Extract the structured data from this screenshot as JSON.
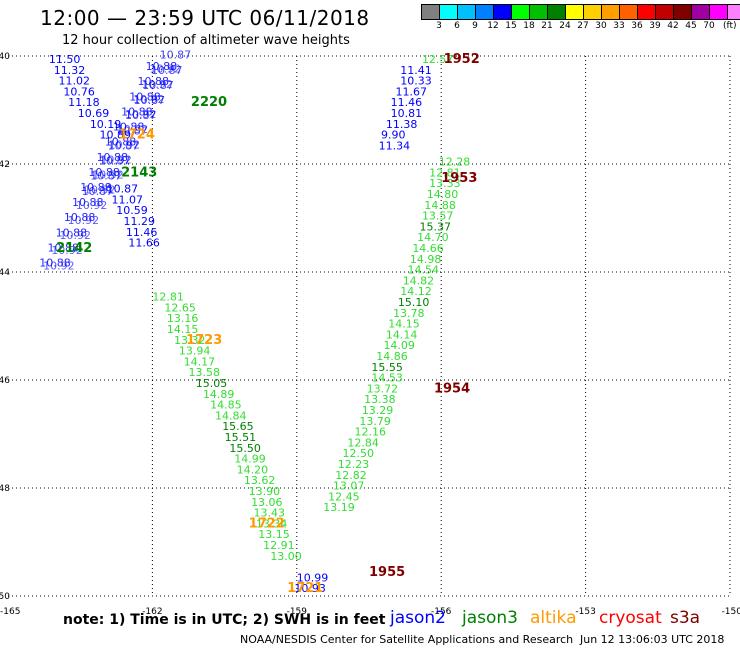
{
  "header": {
    "title": "12:00 — 23:59 UTC 06/11/2018",
    "subtitle": "12 hour collection of altimeter wave heights"
  },
  "colorbar": {
    "colors": [
      "#808080",
      "#00ffff",
      "#00c0ff",
      "#0080ff",
      "#0000ff",
      "#00ff00",
      "#00c000",
      "#008000",
      "#ffff00",
      "#ffd000",
      "#ffa000",
      "#ff6000",
      "#ff0000",
      "#c00000",
      "#800000",
      "#a000a0",
      "#ff00ff",
      "#ff80ff",
      "#000000"
    ],
    "labels": [
      "3",
      "6",
      "9",
      "12",
      "15",
      "18",
      "21",
      "24",
      "27",
      "30",
      "33",
      "36",
      "39",
      "42",
      "45",
      "70"
    ],
    "unit": "(ft)"
  },
  "legend": {
    "jason2": "jason2",
    "jason3": "jason3",
    "altika": "altika",
    "cryosat": "cryosat",
    "s3a": "s3a"
  },
  "footer": {
    "note": "note:  1) Time is in UTC;  2) SWH is in feet",
    "credit": "NOAA/NESDIS Center for Satellite Applications and Research",
    "stamp": "Jun 12 13:06:03 UTC 2018"
  },
  "chart_data": {
    "type": "scatter",
    "xlim": [
      -165,
      -150
    ],
    "ylim": [
      -50,
      -40
    ],
    "x_ticks": [
      "-165",
      "-162",
      "-159",
      "-156",
      "-153",
      "-150"
    ],
    "y_ticks": [
      "-40",
      "-42",
      "-44",
      "-46",
      "-48",
      "-50"
    ],
    "grid": true,
    "series_colors": {
      "jason2": "#0000ff",
      "jason3": "#008000",
      "altika": "#ff9900",
      "s3a": "#800000",
      "light": "#33dd33"
    },
    "tracks": [
      {
        "name": "jason2",
        "color": "jason2",
        "points": [
          [
            -164.15,
            -40.13,
            "11.50"
          ],
          [
            -164.05,
            -40.33,
            "11.32"
          ],
          [
            -163.95,
            -40.53,
            "11.02"
          ],
          [
            -163.85,
            -40.73,
            "10.76"
          ],
          [
            -163.75,
            -40.93,
            "11.18"
          ],
          [
            -163.55,
            -41.13,
            "10.69"
          ],
          [
            -163.3,
            -41.33,
            "10.19"
          ],
          [
            -163.1,
            -41.53,
            "10.89"
          ],
          [
            -162.95,
            -42.53,
            "10.87"
          ],
          [
            -162.85,
            -42.73,
            "11.07"
          ],
          [
            -162.75,
            -42.93,
            "10.59"
          ],
          [
            -162.6,
            -43.13,
            "11.29"
          ],
          [
            -162.55,
            -43.33,
            "11.46"
          ],
          [
            -162.5,
            -43.53,
            "11.66"
          ],
          [
            -159.0,
            -49.73,
            "10.99"
          ],
          [
            -159.05,
            -49.93,
            "10.93"
          ],
          [
            -156.85,
            -40.33,
            "11.41"
          ],
          [
            -156.85,
            -40.53,
            "10.33"
          ],
          [
            -156.95,
            -40.73,
            "11.67"
          ],
          [
            -157.05,
            -40.93,
            "11.46"
          ],
          [
            -157.05,
            -41.13,
            "10.81"
          ],
          [
            -157.15,
            -41.33,
            "11.38"
          ],
          [
            -157.25,
            -41.53,
            "9.90"
          ],
          [
            -157.3,
            -41.73,
            "11.34"
          ]
        ]
      },
      {
        "name": "jason3",
        "color": "jason3",
        "points": [
          [
            -161.2,
            -40.93,
            "2220"
          ],
          [
            -162.65,
            -42.23,
            "2143"
          ],
          [
            -164.0,
            -43.63,
            "2142"
          ],
          [
            -162.0,
            -44.53,
            "12.81"
          ],
          [
            -161.75,
            -44.73,
            "12.65"
          ],
          [
            -161.7,
            -44.93,
            "13.16"
          ],
          [
            -161.7,
            -45.13,
            "14.15"
          ],
          [
            -161.55,
            -45.33,
            "13.32"
          ],
          [
            -161.45,
            -45.53,
            "13.94"
          ],
          [
            -161.35,
            -45.73,
            "14.17"
          ],
          [
            -161.25,
            -45.93,
            "13.58"
          ],
          [
            -161.1,
            -46.13,
            "15.05"
          ],
          [
            -160.95,
            -46.33,
            "14.89"
          ],
          [
            -160.8,
            -46.53,
            "14.85"
          ],
          [
            -160.7,
            -46.73,
            "14.84"
          ],
          [
            -160.55,
            -46.93,
            "15.65"
          ],
          [
            -160.5,
            -47.13,
            "15.51"
          ],
          [
            -160.4,
            -47.33,
            "15.50"
          ],
          [
            -160.3,
            -47.53,
            "14.99"
          ],
          [
            -160.25,
            -47.73,
            "14.20"
          ],
          [
            -160.1,
            -47.93,
            "13.62"
          ],
          [
            -160.0,
            -48.13,
            "13.90"
          ],
          [
            -159.95,
            -48.33,
            "13.06"
          ],
          [
            -159.9,
            -48.53,
            "13.43"
          ],
          [
            -159.85,
            -48.73,
            "13.34"
          ],
          [
            -159.8,
            -48.93,
            "13.15"
          ],
          [
            -159.7,
            -49.13,
            "12.91"
          ],
          [
            -159.55,
            -49.33,
            "13.00"
          ],
          [
            -156.4,
            -40.13,
            "12.57"
          ],
          [
            -156.05,
            -42.03,
            "12.28"
          ],
          [
            -156.25,
            -42.23,
            "12.81"
          ],
          [
            -156.25,
            -42.43,
            "13.33"
          ],
          [
            -156.3,
            -42.63,
            "14.80"
          ],
          [
            -156.35,
            -42.83,
            "14.88"
          ],
          [
            -156.4,
            -43.03,
            "13.57"
          ],
          [
            -156.45,
            -43.23,
            "15.37"
          ],
          [
            -156.5,
            -43.43,
            "14.70"
          ],
          [
            -156.6,
            -43.63,
            "14.66"
          ],
          [
            -156.65,
            -43.83,
            "14.98"
          ],
          [
            -156.7,
            -44.03,
            "14.54"
          ],
          [
            -156.8,
            -44.23,
            "14.82"
          ],
          [
            -156.85,
            -44.43,
            "14.12"
          ],
          [
            -156.9,
            -44.63,
            "15.10"
          ],
          [
            -157.0,
            -44.83,
            "13.78"
          ],
          [
            -157.1,
            -45.03,
            "14.15"
          ],
          [
            -157.15,
            -45.23,
            "14.14"
          ],
          [
            -157.2,
            -45.43,
            "14.09"
          ],
          [
            -157.35,
            -45.63,
            "14.86"
          ],
          [
            -157.45,
            -45.83,
            "15.55"
          ],
          [
            -157.45,
            -46.03,
            "14.53"
          ],
          [
            -157.55,
            -46.23,
            "13.72"
          ],
          [
            -157.6,
            -46.43,
            "13.38"
          ],
          [
            -157.65,
            -46.63,
            "13.29"
          ],
          [
            -157.7,
            -46.83,
            "13.79"
          ],
          [
            -157.8,
            -47.03,
            "12.16"
          ],
          [
            -157.95,
            -47.23,
            "12.84"
          ],
          [
            -158.05,
            -47.43,
            "12.50"
          ],
          [
            -158.15,
            -47.63,
            "12.23"
          ],
          [
            -158.2,
            -47.83,
            "12.82"
          ],
          [
            -158.25,
            -48.03,
            "13.07"
          ],
          [
            -158.35,
            -48.23,
            "12.45"
          ],
          [
            -158.45,
            -48.43,
            "13.19"
          ]
        ]
      },
      {
        "name": "altika",
        "color": "altika",
        "points": [
          [
            -162.7,
            -41.53,
            "1724"
          ],
          [
            -161.3,
            -45.33,
            "1723"
          ],
          [
            -160.0,
            -48.73,
            "1722"
          ],
          [
            -159.2,
            -49.93,
            "1721"
          ]
        ]
      },
      {
        "name": "s3a",
        "color": "s3a",
        "points": [
          [
            -155.95,
            -40.13,
            "1952"
          ],
          [
            -156.0,
            -42.33,
            "1953"
          ],
          [
            -156.15,
            -46.23,
            "1954"
          ],
          [
            -157.5,
            -49.63,
            "1955"
          ]
        ]
      }
    ]
  }
}
